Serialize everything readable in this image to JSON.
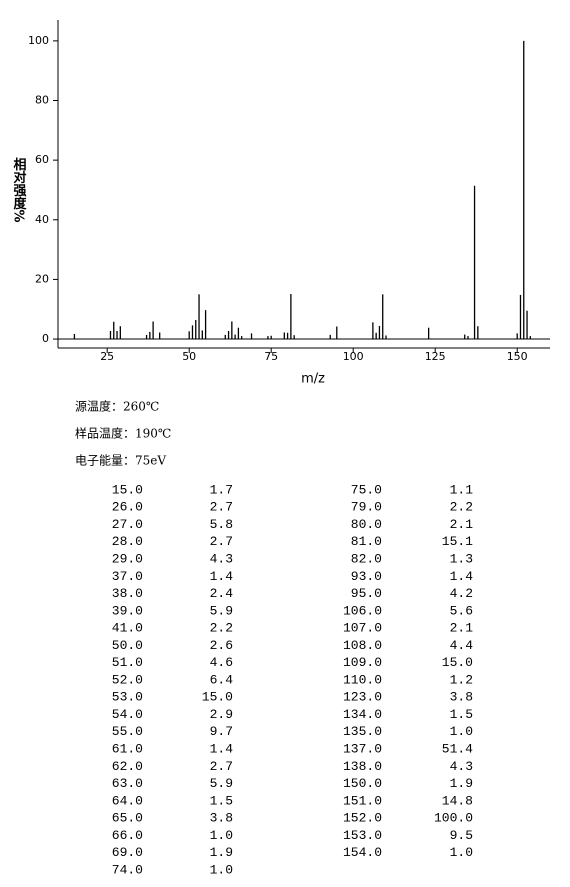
{
  "chart_data": {
    "type": "stick",
    "x_label": "m/z",
    "y_label": "相对强度%",
    "x": [
      15,
      26,
      27,
      28,
      29,
      37,
      38,
      39,
      41,
      50,
      51,
      52,
      53,
      54,
      55,
      61,
      62,
      63,
      64,
      65,
      66,
      69,
      74,
      75,
      79,
      80,
      81,
      82,
      93,
      95,
      106,
      107,
      108,
      109,
      110,
      123,
      134,
      135,
      137,
      138,
      150,
      151,
      152,
      153,
      154
    ],
    "values": [
      1.7,
      2.7,
      5.8,
      2.7,
      4.3,
      1.4,
      2.4,
      5.9,
      2.2,
      2.6,
      4.6,
      6.4,
      15.0,
      2.9,
      9.7,
      1.4,
      2.7,
      5.9,
      1.5,
      3.8,
      1.0,
      1.9,
      1.0,
      1.1,
      2.2,
      2.1,
      15.1,
      1.3,
      1.4,
      4.2,
      5.6,
      2.1,
      4.4,
      15.0,
      1.2,
      3.8,
      1.5,
      1.0,
      51.4,
      4.3,
      1.9,
      14.8,
      100.0,
      9.5,
      1.0
    ],
    "color": "#000000",
    "xlim": [
      10,
      160
    ],
    "xticks": [
      25,
      50,
      75,
      100,
      125,
      150
    ],
    "ylim": [
      -3,
      107
    ],
    "yticks": [
      0,
      20,
      40,
      60,
      80,
      100
    ]
  },
  "info": [
    "源温度：260℃",
    "样品温度：190℃",
    "电子能量：75eV"
  ],
  "table": {
    "left": [
      [
        "15.0",
        "1.7"
      ],
      [
        "26.0",
        "2.7"
      ],
      [
        "27.0",
        "5.8"
      ],
      [
        "28.0",
        "2.7"
      ],
      [
        "29.0",
        "4.3"
      ],
      [
        "37.0",
        "1.4"
      ],
      [
        "38.0",
        "2.4"
      ],
      [
        "39.0",
        "5.9"
      ],
      [
        "41.0",
        "2.2"
      ],
      [
        "50.0",
        "2.6"
      ],
      [
        "51.0",
        "4.6"
      ],
      [
        "52.0",
        "6.4"
      ],
      [
        "53.0",
        "15.0"
      ],
      [
        "54.0",
        "2.9"
      ],
      [
        "55.0",
        "9.7"
      ],
      [
        "61.0",
        "1.4"
      ],
      [
        "62.0",
        "2.7"
      ],
      [
        "63.0",
        "5.9"
      ],
      [
        "64.0",
        "1.5"
      ],
      [
        "65.0",
        "3.8"
      ],
      [
        "66.0",
        "1.0"
      ],
      [
        "69.0",
        "1.9"
      ],
      [
        "74.0",
        "1.0"
      ]
    ],
    "right": [
      [
        "75.0",
        "1.1"
      ],
      [
        "79.0",
        "2.2"
      ],
      [
        "80.0",
        "2.1"
      ],
      [
        "81.0",
        "15.1"
      ],
      [
        "82.0",
        "1.3"
      ],
      [
        "93.0",
        "1.4"
      ],
      [
        "95.0",
        "4.2"
      ],
      [
        "106.0",
        "5.6"
      ],
      [
        "107.0",
        "2.1"
      ],
      [
        "108.0",
        "4.4"
      ],
      [
        "109.0",
        "15.0"
      ],
      [
        "110.0",
        "1.2"
      ],
      [
        "123.0",
        "3.8"
      ],
      [
        "134.0",
        "1.5"
      ],
      [
        "135.0",
        "1.0"
      ],
      [
        "137.0",
        "51.4"
      ],
      [
        "138.0",
        "4.3"
      ],
      [
        "150.0",
        "1.9"
      ],
      [
        "151.0",
        "14.8"
      ],
      [
        "152.0",
        "100.0"
      ],
      [
        "153.0",
        "9.5"
      ],
      [
        "154.0",
        "1.0"
      ]
    ]
  }
}
